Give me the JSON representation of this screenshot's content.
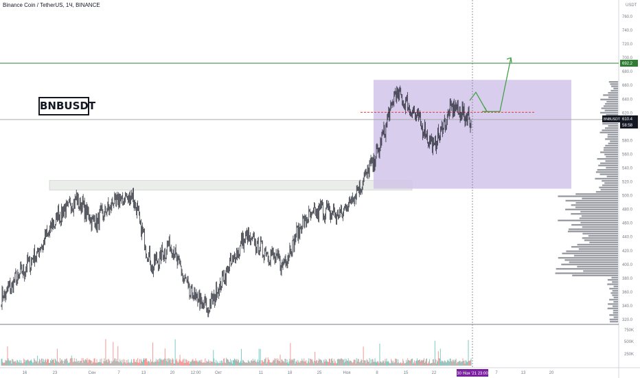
{
  "header": {
    "title": "Binance Coin / TetherUS, 1Ч, BINANCE"
  },
  "annotation": {
    "ticker_label": "BNBUSDT"
  },
  "price_scale": {
    "currency": "USDT",
    "levels": [
      "760.0",
      "740.0",
      "720.0",
      "700.0",
      "680.0",
      "660.0",
      "640.0",
      "620.0",
      "600.0",
      "580.0",
      "560.0",
      "540.0",
      "520.0",
      "500.0",
      "480.0",
      "460.0",
      "440.0",
      "420.0",
      "400.0",
      "380.0",
      "360.0",
      "340.0",
      "320.0"
    ]
  },
  "volume_scale": {
    "levels": [
      "750K",
      "500K",
      "250K"
    ]
  },
  "time_axis": {
    "labels": [
      "16",
      "23",
      "Сен",
      "7",
      "13",
      "20",
      "12:00",
      "Окт",
      "11",
      "18",
      "25",
      "Ноя",
      "8",
      "15",
      "22",
      "29",
      "7",
      "13",
      "20"
    ],
    "crosshair_label": "30 Ноя '21   23:00"
  },
  "badges": {
    "resistance": {
      "value": "692.2",
      "color": "#2e7d32"
    },
    "current": {
      "symbol": "BNBUSDT",
      "price": "610.4",
      "countdown": "58:58"
    }
  },
  "chart_data": {
    "type": "candlestick",
    "symbol": "BNBUSDT",
    "y_unit": "USDT",
    "ylim": [
      318,
      768
    ],
    "x_categories": [
      "16",
      "23",
      "Сен",
      "7",
      "13",
      "20",
      "12:00",
      "Окт",
      "11",
      "18",
      "25",
      "Ноя",
      "8",
      "15",
      "22",
      "29",
      "7",
      "13",
      "20"
    ],
    "price_path_approx": [
      350,
      385,
      420,
      470,
      495,
      460,
      490,
      500,
      395,
      430,
      360,
      335,
      390,
      440,
      420,
      400,
      460,
      480,
      470,
      510,
      560,
      650,
      620,
      570,
      630,
      610
    ],
    "horizontal_levels": [
      {
        "value": 692.2,
        "color": "#2e7d32"
      },
      {
        "value": 610.4,
        "color": "#9e9e9e"
      },
      {
        "value": 621,
        "color": "#e53935",
        "style": "dashed"
      }
    ],
    "zones": [
      {
        "kind": "support",
        "from": 508,
        "to": 522,
        "color": "#e8ece8"
      },
      {
        "kind": "range",
        "from": 510,
        "to": 668,
        "color": "#d1c4e9"
      }
    ],
    "projection": [
      650,
      622,
      700
    ],
    "volume_profile": "visible range volume profile on right side, heaviest near 390–500"
  }
}
